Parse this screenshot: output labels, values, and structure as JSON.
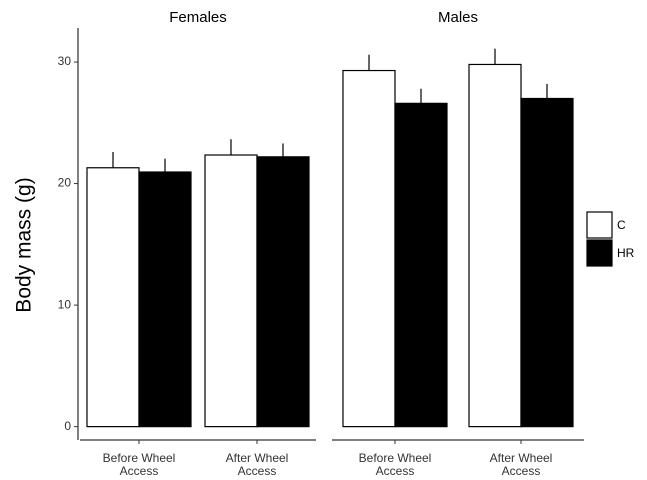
{
  "chart_data": {
    "type": "bar",
    "y_label": "Body mass (g)",
    "ylim": [
      -1.1,
      32.8
    ],
    "yticks": [
      0,
      10,
      20,
      30
    ],
    "grid": false,
    "legend": "right",
    "series": [
      {
        "name": "C",
        "color": "#ffffff"
      },
      {
        "name": "HR",
        "color": "#000000"
      }
    ],
    "panels": [
      {
        "title": "Females",
        "categories": [
          "Before Wheel Access",
          "After Wheel Access"
        ],
        "series": [
          {
            "values": [
              21.3,
              22.35
            ],
            "errors": [
              1.3,
              1.3
            ]
          },
          {
            "values": [
              20.95,
              22.2
            ],
            "errors": [
              1.1,
              1.1
            ]
          }
        ]
      },
      {
        "title": "Males",
        "categories": [
          "Before Wheel Access",
          "After Wheel Access"
        ],
        "series": [
          {
            "values": [
              29.3,
              29.8
            ],
            "errors": [
              1.3,
              1.3
            ]
          },
          {
            "values": [
              26.6,
              27.0
            ],
            "errors": [
              1.2,
              1.2
            ]
          }
        ]
      }
    ]
  }
}
